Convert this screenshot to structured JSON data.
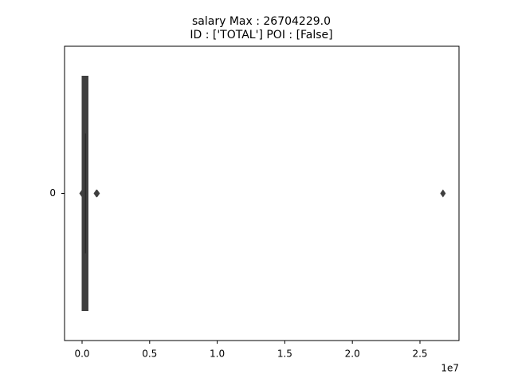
{
  "chart_data": {
    "type": "boxen",
    "title": [
      "salary  Max : 26704229.0",
      "ID : ['TOTAL']  POI : [False]"
    ],
    "categories": [
      "0"
    ],
    "color": "#3f3f3f",
    "boxes": [
      {
        "low": 210000,
        "high": 290000
      },
      {
        "low": 0,
        "high": 440000
      }
    ],
    "median": 250000,
    "outliers": [
      477,
      1060932,
      1111258,
      26704229
    ],
    "xlim": [
      -1297000,
      27890000
    ],
    "xticks": [
      {
        "value": 0,
        "label": "0.0"
      },
      {
        "value": 5000000,
        "label": "0.5"
      },
      {
        "value": 10000000,
        "label": "1.0"
      },
      {
        "value": 15000000,
        "label": "1.5"
      },
      {
        "value": 20000000,
        "label": "2.0"
      },
      {
        "value": 25000000,
        "label": "2.5"
      }
    ],
    "x_offset_label": "1e7"
  }
}
